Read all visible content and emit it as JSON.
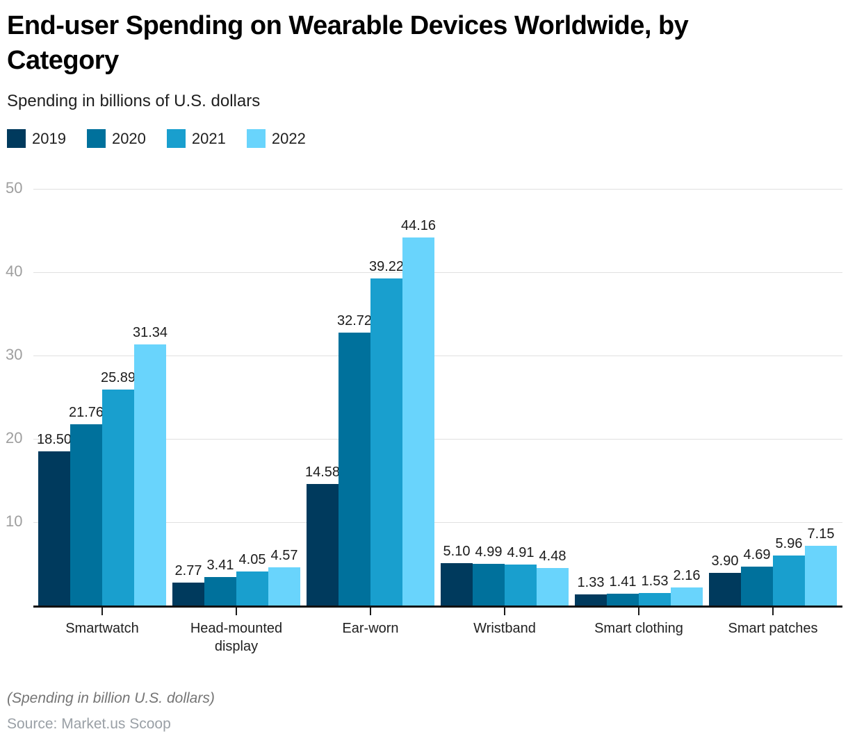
{
  "header": {
    "title": "End-user Spending on Wearable Devices Worldwide, by Category",
    "subtitle": "Spending in billions of U.S. dollars"
  },
  "footer": {
    "note": "(Spending in billion U.S. dollars)",
    "source": "Source: Market.us Scoop"
  },
  "chart_data": {
    "type": "bar",
    "title": "End-user Spending on Wearable Devices Worldwide, by Category",
    "subtitle": "Spending in billions of U.S. dollars",
    "categories": [
      "Smartwatch",
      "Head-mounted display",
      "Ear-worn",
      "Wristband",
      "Smart clothing",
      "Smart patches"
    ],
    "series": [
      {
        "name": "2019",
        "color": "#003a5d",
        "values": [
          18.5,
          2.77,
          14.58,
          5.1,
          1.33,
          3.9
        ]
      },
      {
        "name": "2020",
        "color": "#00719c",
        "values": [
          21.76,
          3.41,
          32.72,
          4.99,
          1.41,
          4.69
        ]
      },
      {
        "name": "2021",
        "color": "#199fce",
        "values": [
          25.89,
          4.05,
          39.22,
          4.91,
          1.53,
          5.96
        ]
      },
      {
        "name": "2022",
        "color": "#69d4fc",
        "values": [
          31.34,
          4.57,
          44.16,
          4.48,
          2.16,
          7.15
        ]
      }
    ],
    "ylim": [
      0,
      50
    ],
    "yticks": [
      10,
      20,
      30,
      40,
      50
    ],
    "grid": "horizontal-light-gray",
    "legend_position": "top-left",
    "value_label_format": "2 decimals above each bar",
    "colors": {
      "axis": "#111111",
      "gridline": "#e0e0e0",
      "ytick_label": "#9e9e9e",
      "value_label": "#1b1b1b",
      "category_label": "#212121"
    }
  }
}
